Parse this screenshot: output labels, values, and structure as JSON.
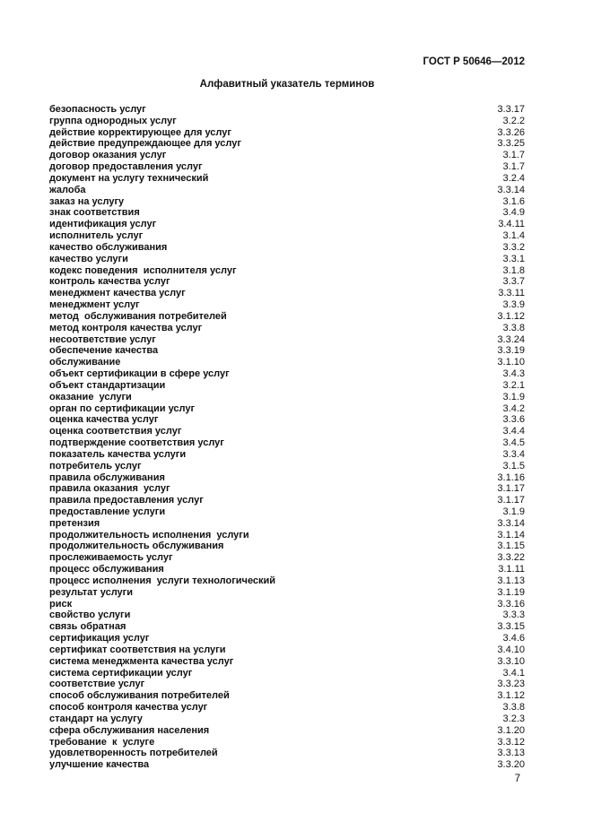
{
  "header": {
    "designation": "ГОСТ Р 50646—2012"
  },
  "title": "Алфавитный указатель терминов",
  "page_number": "7",
  "index": {
    "entries": [
      {
        "term": "безопасность услуг",
        "ref": "3.3.17"
      },
      {
        "term": "группа однородных услуг",
        "ref": "3.2.2"
      },
      {
        "term": "действие корректирующее для услуг",
        "ref": "3.3.26"
      },
      {
        "term": "действие предупреждающее для услуг",
        "ref": "3.3.25"
      },
      {
        "term": "договор оказания услуг",
        "ref": "3.1.7"
      },
      {
        "term": "договор предоставления услуг",
        "ref": "3.1.7"
      },
      {
        "term": "документ на услугу технический",
        "ref": "3.2.4"
      },
      {
        "term": "жалоба",
        "ref": "3.3.14"
      },
      {
        "term": "заказ на услугу",
        "ref": "3.1.6"
      },
      {
        "term": "знак соответствия",
        "ref": "3.4.9"
      },
      {
        "term": "идентификация услуг",
        "ref": "3.4.11"
      },
      {
        "term": "исполнитель услуг",
        "ref": "3.1.4"
      },
      {
        "term": "качество обслуживания",
        "ref": "3.3.2"
      },
      {
        "term": "качество услуги",
        "ref": "3.3.1"
      },
      {
        "term": "кодекс поведения  исполнителя услуг",
        "ref": "3.1.8"
      },
      {
        "term": "контроль качества услуг",
        "ref": "3.3.7"
      },
      {
        "term": "менеджмент качества услуг",
        "ref": "3.3.11"
      },
      {
        "term": "менеджмент услуг",
        "ref": "3.3.9"
      },
      {
        "term": "метод  обслуживания потребителей",
        "ref": "3.1.12"
      },
      {
        "term": "метод контроля качества услуг",
        "ref": "3.3.8"
      },
      {
        "term": "несоответствие услуг",
        "ref": "3.3.24"
      },
      {
        "term": "обеспечение качества",
        "ref": "3.3.19"
      },
      {
        "term": "обслуживание",
        "ref": "3.1.10"
      },
      {
        "term": "объект сертификации в сфере услуг",
        "ref": "3.4.3"
      },
      {
        "term": "объект стандартизации",
        "ref": "3.2.1"
      },
      {
        "term": "оказание  услуги",
        "ref": "3.1.9"
      },
      {
        "term": "орган по сертификации услуг",
        "ref": "3.4.2"
      },
      {
        "term": "оценка качества услуг",
        "ref": "3.3.6"
      },
      {
        "term": "оценка соответствия услуг",
        "ref": "3.4.4"
      },
      {
        "term": "подтверждение соответствия услуг",
        "ref": "3.4.5"
      },
      {
        "term": "показатель качества услуги",
        "ref": "3.3.4"
      },
      {
        "term": "потребитель услуг",
        "ref": "3.1.5"
      },
      {
        "term": "правила обслуживания",
        "ref": "3.1.16"
      },
      {
        "term": "правила оказания  услуг",
        "ref": "3.1.17"
      },
      {
        "term": "правила предоставления услуг",
        "ref": "3.1.17"
      },
      {
        "term": "предоставление услуги",
        "ref": "3.1.9"
      },
      {
        "term": "претензия",
        "ref": "3.3.14"
      },
      {
        "term": "продолжительность исполнения  услуги",
        "ref": "3.1.14"
      },
      {
        "term": "продолжительность обслуживания",
        "ref": "3.1.15"
      },
      {
        "term": "прослеживаемость услуг",
        "ref": "3.3.22"
      },
      {
        "term": "процесс обслуживания",
        "ref": "3.1.11"
      },
      {
        "term": "процесс исполнения  услуги технологический",
        "ref": "3.1.13"
      },
      {
        "term": "результат услуги",
        "ref": "3.1.19"
      },
      {
        "term": "риск",
        "ref": "3.3.16"
      },
      {
        "term": "свойство услуги",
        "ref": "3.3.3"
      },
      {
        "term": "связь обратная",
        "ref": "3.3.15"
      },
      {
        "term": "сертификация услуг",
        "ref": "3.4.6"
      },
      {
        "term": "сертификат соответствия на услуги",
        "ref": "3.4.10"
      },
      {
        "term": "система менеджмента качества услуг",
        "ref": "3.3.10"
      },
      {
        "term": "система сертификации услуг",
        "ref": "3.4.1"
      },
      {
        "term": "соответствие услуг",
        "ref": "3.3.23"
      },
      {
        "term": "способ обслуживания потребителей",
        "ref": "3.1.12"
      },
      {
        "term": "способ контроля качества услуг",
        "ref": "3.3.8"
      },
      {
        "term": "стандарт на услугу",
        "ref": "3.2.3"
      },
      {
        "term": "сфера обслуживания населения",
        "ref": "3.1.20"
      },
      {
        "term": "требование  к  услуге",
        "ref": "3.3.12"
      },
      {
        "term": "удовлетворенность потребителей",
        "ref": "3.3.13"
      },
      {
        "term": "улучшение качества",
        "ref": "3.3.20"
      }
    ]
  }
}
